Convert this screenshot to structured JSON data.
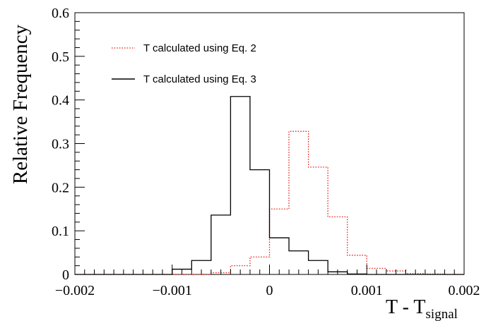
{
  "chart_data": {
    "type": "step",
    "xlabel": {
      "main": "T - T",
      "sub": "signal"
    },
    "ylabel": "Relative Frequency",
    "xlim": [
      -0.002,
      0.002
    ],
    "ylim": [
      0,
      0.6
    ],
    "x_ticks": [
      -0.002,
      -0.001,
      0,
      0.001,
      0.002
    ],
    "x_tick_labels": [
      "−0.002",
      "−0.001",
      "0",
      "0.001",
      "0.002"
    ],
    "y_ticks": [
      0,
      0.1,
      0.2,
      0.3,
      0.4,
      0.5,
      0.6
    ],
    "y_tick_labels": [
      "0",
      "0.1",
      "0.2",
      "0.3",
      "0.4",
      "0.5",
      "0.6"
    ],
    "bin_edges": [
      -0.002,
      -0.0018,
      -0.0016,
      -0.0014,
      -0.0012,
      -0.001,
      -0.0008,
      -0.0006,
      -0.0004,
      -0.0002,
      0,
      0.0002,
      0.0004,
      0.0006,
      0.0008,
      0.001,
      0.0012,
      0.0014,
      0.0016,
      0.0018,
      0.002
    ],
    "legend_position": "top-left",
    "series": [
      {
        "name": "T calculated using Eq. 2",
        "color": "#e8251b",
        "style": "dotted",
        "values": [
          0,
          0,
          0,
          0,
          0,
          0,
          0,
          0.004,
          0.02,
          0.04,
          0.15,
          0.328,
          0.246,
          0.132,
          0.044,
          0.014,
          0.008,
          0.002,
          0.001,
          0
        ]
      },
      {
        "name": "T calculated using Eq. 3",
        "color": "#000000",
        "style": "solid",
        "values": [
          0,
          0,
          0,
          0,
          0,
          0.012,
          0.032,
          0.136,
          0.408,
          0.24,
          0.084,
          0.054,
          0.032,
          0.006,
          0.001,
          0,
          0,
          0,
          0,
          0
        ]
      }
    ]
  }
}
